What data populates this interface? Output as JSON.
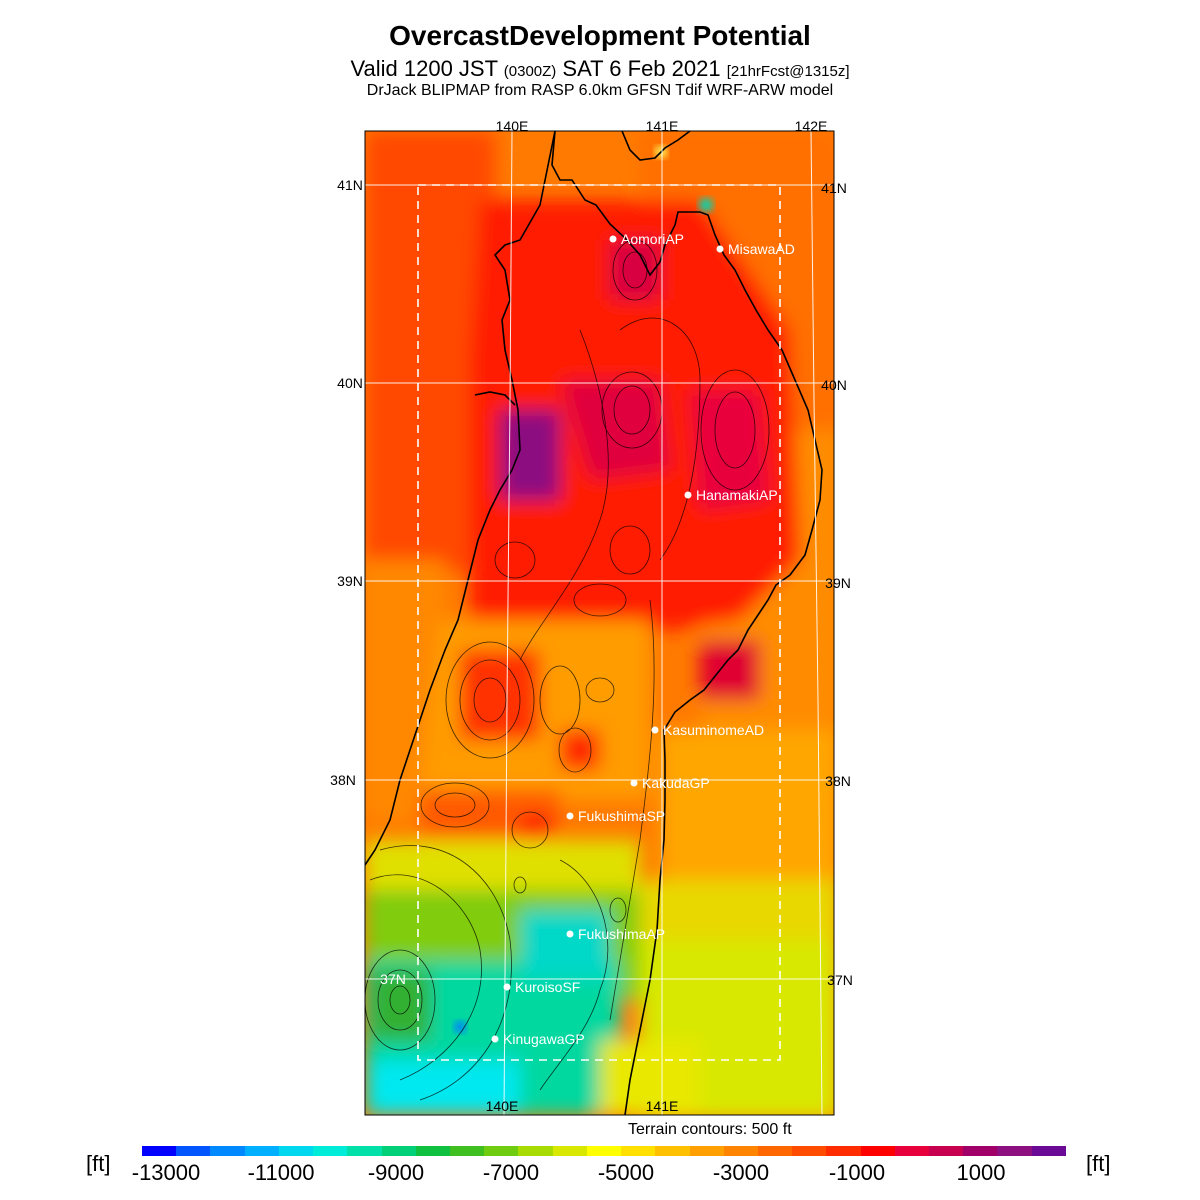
{
  "header": {
    "title": "OvercastDevelopment Potential",
    "subtitle_a": "Valid 1200 JST",
    "subtitle_b": "(0300Z)",
    "subtitle_c": "SAT 6 Feb 2021",
    "subtitle_d": "[21hrFcst@1315z]",
    "source": "DrJack BLIPMAP from RASP 6.0km GFSN Tdif WRF-ARW model"
  },
  "map": {
    "lon_labels": [
      "140E",
      "141E",
      "142E"
    ],
    "lat_labels": [
      "41N",
      "40N",
      "39N",
      "38N",
      "37N"
    ],
    "sites": [
      {
        "name": "AomoriAP"
      },
      {
        "name": "MisawaAD"
      },
      {
        "name": "HanamakiAP"
      },
      {
        "name": "KasuminomeAD"
      },
      {
        "name": "KakudaGP"
      },
      {
        "name": "FukushimaSP"
      },
      {
        "name": "FukushimaAP"
      },
      {
        "name": "KuroisoSF"
      },
      {
        "name": "KinugawaGP"
      }
    ],
    "terrain_note": "Terrain contours: 500 ft"
  },
  "colorbar": {
    "unit_left": "[ft]",
    "unit_right": "[ft]",
    "ticks": [
      "-13000",
      "-11000",
      "-9000",
      "-7000",
      "-5000",
      "-3000",
      "-1000",
      "1000"
    ],
    "colors": [
      "#0000ff",
      "#0055ff",
      "#0088ff",
      "#00b0ff",
      "#00d8f0",
      "#00ecd8",
      "#00e0a8",
      "#00d078",
      "#10c040",
      "#40c020",
      "#70cc10",
      "#a8dc00",
      "#d8e800",
      "#ffff00",
      "#ffe000",
      "#ffc000",
      "#ffa000",
      "#ff8400",
      "#ff6800",
      "#ff4c00",
      "#ff2c00",
      "#ff0000",
      "#e8003c",
      "#c80050",
      "#a00068",
      "#8c1080",
      "#6a0a96"
    ]
  }
}
